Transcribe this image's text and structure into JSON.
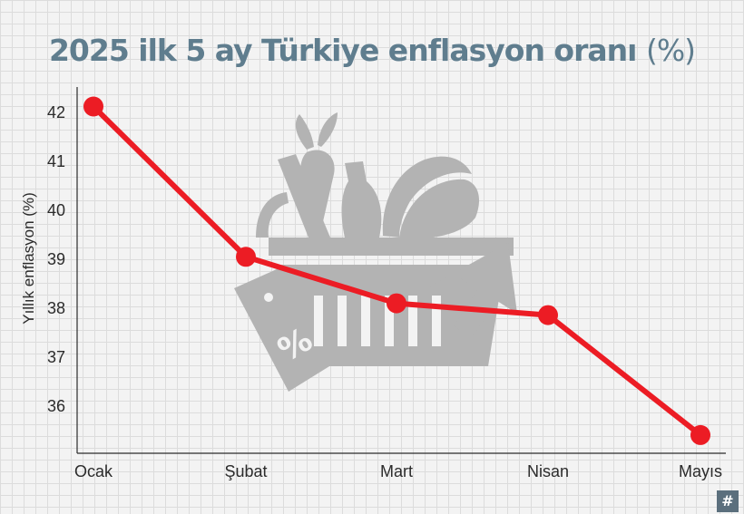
{
  "header": {
    "title": "2025 ilk 5 ay Türkiye enflasyon oranı",
    "title_unit": "(%)"
  },
  "badge": {
    "icon": "hashtag-logo-icon",
    "text": "#"
  },
  "background_icon": "shopping-basket-illustration",
  "colors": {
    "line": "#ec1c24",
    "title": "#5f7d8e",
    "axis": "#2b2b2b",
    "background": "#f3f3f3",
    "illustration": "#b3b3b3"
  },
  "chart_data": {
    "type": "line",
    "title": "2025 ilk 5 ay Türkiye enflasyon oranı (%)",
    "xlabel": "",
    "ylabel": "Yıllık enflasyon (%)",
    "categories": [
      "Ocak",
      "Şubat",
      "Mart",
      "Nisan",
      "Mayıs"
    ],
    "series": [
      {
        "values": [
          42.12,
          39.05,
          38.1,
          37.86,
          35.41
        ]
      }
    ],
    "yticks": [
      36,
      37,
      38,
      39,
      40,
      41,
      42
    ],
    "ylim": [
      35.2,
      42.5
    ],
    "grid": true,
    "legend": "none"
  }
}
